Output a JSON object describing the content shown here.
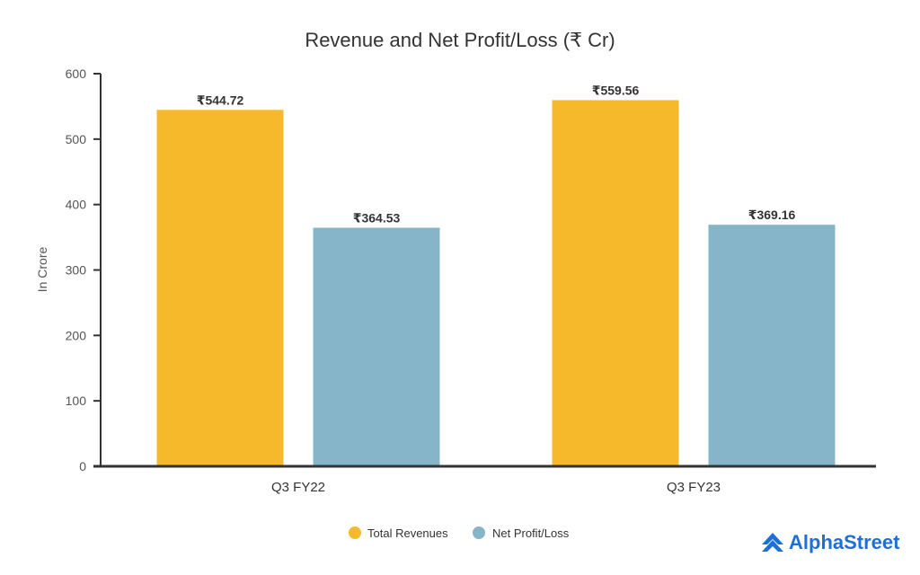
{
  "chart_data": {
    "type": "bar",
    "title": "Revenue and Net Profit/Loss (₹ Cr)",
    "xlabel": "",
    "ylabel": "In Crore",
    "ylim": [
      0,
      600
    ],
    "yticks": [
      0,
      100,
      200,
      300,
      400,
      500,
      600
    ],
    "grid": false,
    "legend_position": "bottom-center",
    "categories": [
      "Q3 FY22",
      "Q3 FY23"
    ],
    "series": [
      {
        "name": "Total Revenues",
        "color": "#F5B92B",
        "values": [
          544.72,
          559.56
        ],
        "labels": [
          "₹544.72",
          "₹559.56"
        ]
      },
      {
        "name": "Net Profit/Loss",
        "color": "#86B4C9",
        "values": [
          364.53,
          369.16
        ],
        "labels": [
          "₹364.53",
          "₹369.16"
        ]
      }
    ]
  },
  "branding": {
    "logo_text": "AlphaStreet",
    "logo_color": "#1E6FD9"
  }
}
